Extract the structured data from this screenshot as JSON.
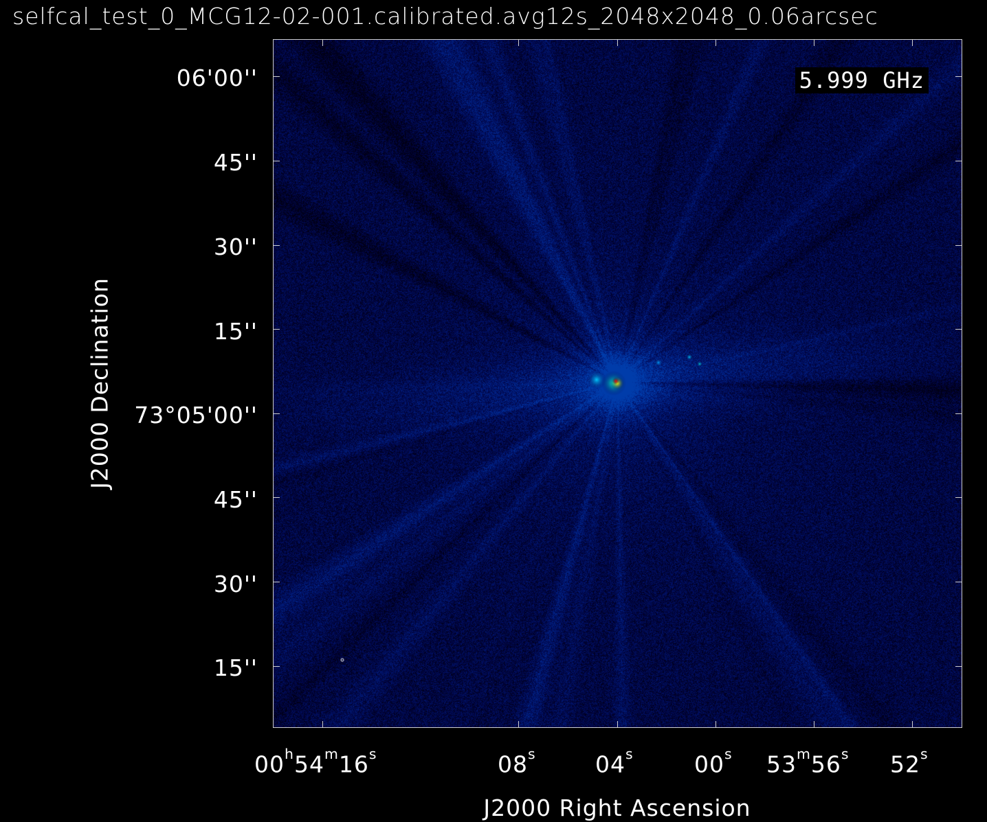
{
  "title": "selfcal_test_0_MCG12-02-001.calibrated.avg12s_2048x2048_0.06arcsec",
  "frequency_label": "5.999 GHz",
  "y_axis_label": "J2000 Declination",
  "x_axis_label": "J2000 Right Ascension",
  "y_ticks": [
    "06'00''",
    "45''",
    "30''",
    "15''",
    "73°05'00''",
    "45''",
    "30''",
    "15''"
  ],
  "x_ticks": [
    {
      "h": "00",
      "m": "54",
      "s": "16"
    },
    {
      "s": "08"
    },
    {
      "s": "04"
    },
    {
      "s": "00"
    },
    {
      "m": "53",
      "s": "56"
    },
    {
      "s": "52"
    }
  ],
  "colormap": "rainbow (dark blue to red)",
  "background_color": "#06064a",
  "peak_color": "#ff0000"
}
